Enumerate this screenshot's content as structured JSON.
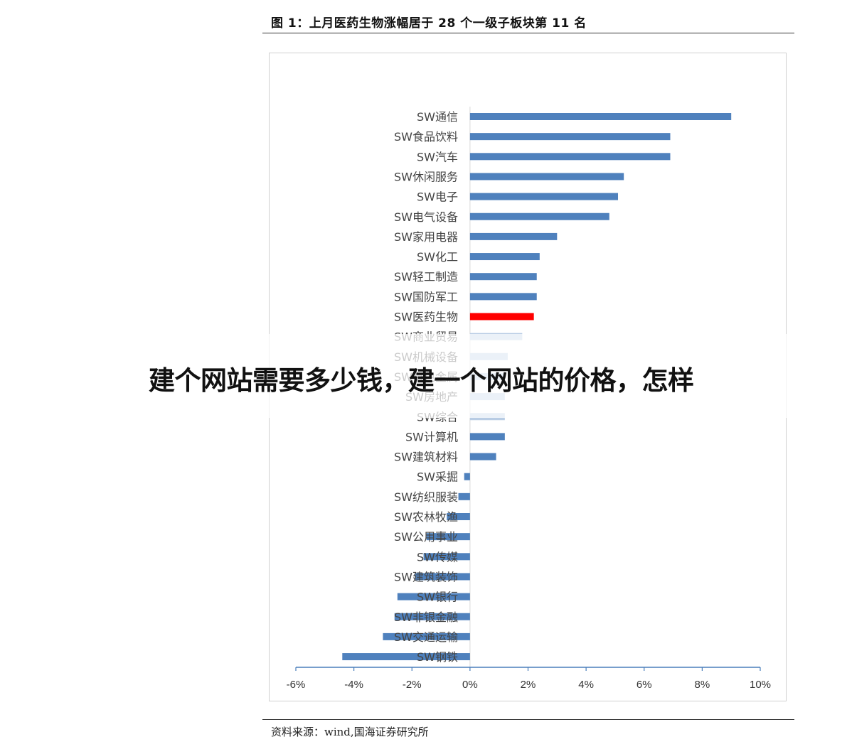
{
  "figure_title": "图 1：上月医药生物涨幅居于 28 个一级子板块第 11 名",
  "source": "资料来源：wind,国海证券研究所",
  "overlay_title": "建个网站需要多少钱，建一个网站的价格，怎样",
  "colors": {
    "bar": "#4f81bd",
    "highlight": "#ff0000",
    "faded_bar": "#b8cce4",
    "axis": "#4a7ebb"
  },
  "chart_data": {
    "type": "bar",
    "orientation": "horizontal",
    "title": "",
    "xlabel": "",
    "ylabel": "",
    "xlim": [
      -0.06,
      0.1
    ],
    "x_ticks": [
      -0.06,
      -0.04,
      -0.02,
      0.0,
      0.02,
      0.04,
      0.06,
      0.08,
      0.1
    ],
    "x_tick_labels": [
      "-6%",
      "-4%",
      "-2%",
      "0%",
      "2%",
      "4%",
      "6%",
      "8%",
      "10%"
    ],
    "grid": false,
    "categories": [
      "SW通信",
      "SW食品饮料",
      "SW汽车",
      "SW休闲服务",
      "SW电子",
      "SW电气设备",
      "SW家用电器",
      "SW化工",
      "SW轻工制造",
      "SW国防军工",
      "SW医药生物",
      "SW商业贸易",
      "SW机械设备",
      "SW有色金属",
      "SW房地产",
      "SW综合",
      "SW计算机",
      "SW建筑材料",
      "SW采掘",
      "SW纺织服装",
      "SW农林牧渔",
      "SW公用事业",
      "SW传媒",
      "SW建筑装饰",
      "SW银行",
      "SW非银金融",
      "SW交通运输",
      "SW钢铁"
    ],
    "values": [
      0.09,
      0.069,
      0.069,
      0.053,
      0.051,
      0.048,
      0.03,
      0.024,
      0.023,
      0.023,
      0.022,
      0.018,
      0.013,
      0.012,
      0.012,
      0.012,
      0.012,
      0.009,
      -0.002,
      -0.004,
      -0.008,
      -0.015,
      -0.016,
      -0.019,
      -0.025,
      -0.026,
      -0.03,
      -0.044
    ],
    "highlight_category": "SW医药生物",
    "faded_categories": [
      "SW商业贸易",
      "SW机械设备",
      "SW有色金属",
      "SW房地产",
      "SW综合"
    ]
  }
}
